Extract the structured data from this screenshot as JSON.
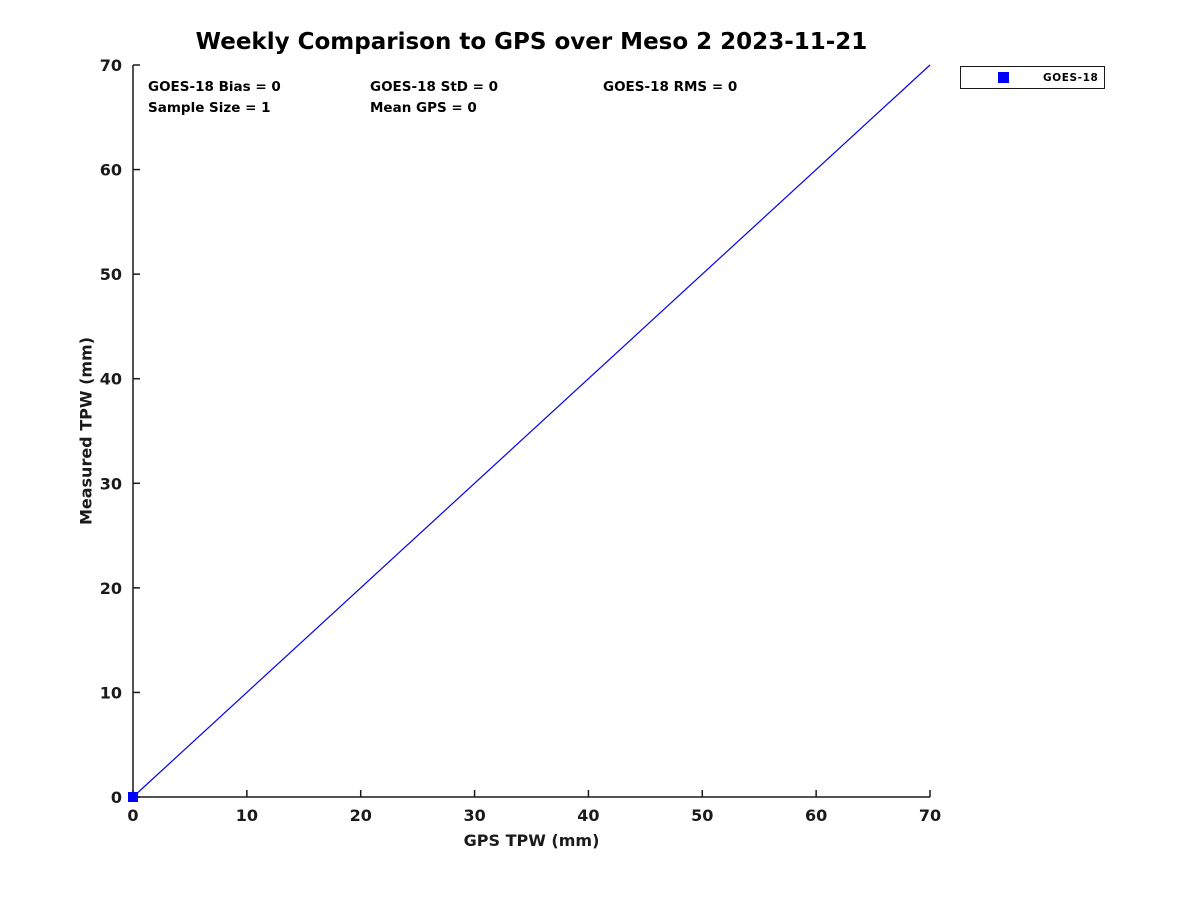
{
  "chart_data": {
    "type": "scatter",
    "title": "Weekly Comparison to GPS over Meso 2 2023-11-21",
    "xlabel": "GPS TPW (mm)",
    "ylabel": "Measured TPW (mm)",
    "xlim": [
      0,
      70
    ],
    "ylim": [
      0,
      70
    ],
    "xticks": [
      0,
      10,
      20,
      30,
      40,
      50,
      60,
      70
    ],
    "yticks": [
      0,
      10,
      20,
      30,
      40,
      50,
      60,
      70
    ],
    "grid": false,
    "box": false,
    "tick_direction": "in",
    "legend": {
      "position": "outside-top-right",
      "entries": [
        {
          "label": "GOES-18",
          "marker": "square",
          "color": "#0000ff"
        }
      ]
    },
    "series": [
      {
        "name": "GOES-18",
        "type": "scatter",
        "marker": "square",
        "color": "#0000ff",
        "points": [
          [
            0,
            0
          ]
        ]
      }
    ],
    "reference_line": {
      "name": "identity-line",
      "from": [
        0,
        0
      ],
      "to": [
        70,
        70
      ],
      "color": "#0000ee"
    },
    "stats": {
      "bias": 0,
      "std": 0,
      "rms": 0,
      "sample_size": 1,
      "mean_gps": 0
    },
    "annotations": [
      {
        "text": "GOES-18 Bias = 0"
      },
      {
        "text": "GOES-18 StD = 0"
      },
      {
        "text": "GOES-18 RMS = 0"
      },
      {
        "text": "Sample Size = 1"
      },
      {
        "text": "Mean GPS = 0"
      }
    ],
    "colors": {
      "axis": "#1a1a1a",
      "title_text": "#000000",
      "series_blue": "#0000ff",
      "background": "#ffffff"
    }
  }
}
